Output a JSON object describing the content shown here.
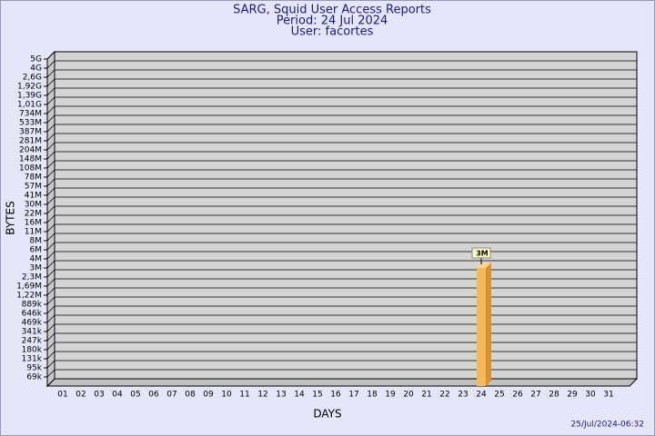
{
  "chart_data": {
    "type": "bar3d",
    "title": "SARG, Squid User Access Reports",
    "subtitles": [
      "Period: 24 Jul 2024",
      "User: facortes"
    ],
    "xlabel": "DAYS",
    "ylabel": "BYTES",
    "footer": "25/Jul/2024-06:32",
    "categories": [
      "01",
      "02",
      "03",
      "04",
      "05",
      "06",
      "07",
      "08",
      "09",
      "10",
      "11",
      "12",
      "13",
      "14",
      "15",
      "16",
      "17",
      "18",
      "19",
      "20",
      "21",
      "22",
      "23",
      "24",
      "25",
      "26",
      "27",
      "28",
      "29",
      "30",
      "31"
    ],
    "values": [
      null,
      null,
      null,
      null,
      null,
      null,
      null,
      null,
      null,
      null,
      null,
      null,
      null,
      null,
      null,
      null,
      null,
      null,
      null,
      null,
      null,
      null,
      null,
      3000000,
      null,
      null,
      null,
      null,
      null,
      null,
      null
    ],
    "value_labels": [
      null,
      null,
      null,
      null,
      null,
      null,
      null,
      null,
      null,
      null,
      null,
      null,
      null,
      null,
      null,
      null,
      null,
      null,
      null,
      null,
      null,
      null,
      null,
      "3M",
      null,
      null,
      null,
      null,
      null,
      null,
      null
    ],
    "color": "#f5b85a",
    "ylim": [
      0,
      5000000000
    ],
    "yticks": [
      {
        "value": 69000,
        "label": "69k"
      },
      {
        "value": 95000,
        "label": "95k"
      },
      {
        "value": 131000,
        "label": "131k"
      },
      {
        "value": 180000,
        "label": "180k"
      },
      {
        "value": 247000,
        "label": "247k"
      },
      {
        "value": 341000,
        "label": "341k"
      },
      {
        "value": 469000,
        "label": "469k"
      },
      {
        "value": 646000,
        "label": "646k"
      },
      {
        "value": 889000,
        "label": "889k"
      },
      {
        "value": 1220000,
        "label": "1,22M"
      },
      {
        "value": 1690000,
        "label": "1,69M"
      },
      {
        "value": 2300000,
        "label": "2,3M"
      },
      {
        "value": 3000000,
        "label": "3M"
      },
      {
        "value": 4000000,
        "label": "4M"
      },
      {
        "value": 6000000,
        "label": "6M"
      },
      {
        "value": 8000000,
        "label": "8M"
      },
      {
        "value": 11000000,
        "label": "11M"
      },
      {
        "value": 16000000,
        "label": "16M"
      },
      {
        "value": 22000000,
        "label": "22M"
      },
      {
        "value": 30000000,
        "label": "30M"
      },
      {
        "value": 41000000,
        "label": "41M"
      },
      {
        "value": 57000000,
        "label": "57M"
      },
      {
        "value": 78000000,
        "label": "78M"
      },
      {
        "value": 108000000,
        "label": "108M"
      },
      {
        "value": 148000000,
        "label": "148M"
      },
      {
        "value": 204000000,
        "label": "204M"
      },
      {
        "value": 281000000,
        "label": "281M"
      },
      {
        "value": 387000000,
        "label": "387M"
      },
      {
        "value": 533000000,
        "label": "533M"
      },
      {
        "value": 734000000,
        "label": "734M"
      },
      {
        "value": 1010000000,
        "label": "1,01G"
      },
      {
        "value": 1390000000,
        "label": "1,39G"
      },
      {
        "value": 1920000000,
        "label": "1,92G"
      },
      {
        "value": 2600000000,
        "label": "2,6G"
      },
      {
        "value": 4000000000,
        "label": "4G"
      },
      {
        "value": 5000000000,
        "label": "5G"
      }
    ],
    "grid": true
  }
}
